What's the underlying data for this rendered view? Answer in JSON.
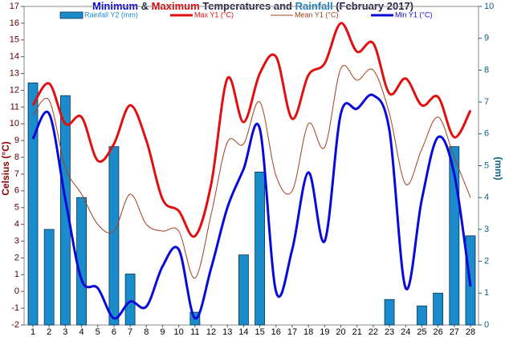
{
  "chart_data": {
    "type": "combo",
    "title_parts": [
      {
        "text": "Minimum",
        "color": "#0000cc"
      },
      {
        "text": " & ",
        "color": "#222244"
      },
      {
        "text": "Maximum",
        "color": "#e00000"
      },
      {
        "text": " Temperatures and ",
        "color": "#222244"
      },
      {
        "text": "Rainfall",
        "color": "#1a7fc0"
      },
      {
        "text": " (February 2017)",
        "color": "#222244"
      }
    ],
    "y_label": "Celsius (°C)",
    "y2_label": "(mm)",
    "categories": [
      "1",
      "2",
      "3",
      "4",
      "5",
      "6",
      "7",
      "8",
      "9",
      "10",
      "11",
      "12",
      "13",
      "14",
      "15",
      "16",
      "17",
      "18",
      "19",
      "20",
      "21",
      "22",
      "23",
      "24",
      "25",
      "26",
      "27",
      "28"
    ],
    "series": [
      {
        "name": "Rainfall Y2 (mm)",
        "kind": "bar",
        "axis": "y2",
        "color": "#1a8ccc",
        "values": [
          7.6,
          3.0,
          7.2,
          4.0,
          0,
          5.6,
          1.6,
          0,
          0,
          0,
          0.4,
          0,
          0,
          2.2,
          4.8,
          0,
          0,
          0,
          0,
          0,
          0,
          0,
          0.8,
          0,
          0.6,
          1.0,
          5.6,
          2.8
        ]
      },
      {
        "name": "Max Y1 (°C)",
        "kind": "line",
        "color": "#e01010",
        "width": 3,
        "values": [
          11.1,
          12.4,
          10.0,
          10.4,
          7.8,
          8.8,
          11.1,
          9.0,
          5.5,
          4.8,
          3.3,
          6.4,
          12.7,
          10.1,
          13.0,
          14.0,
          10.3,
          12.9,
          13.6,
          16.0,
          14.3,
          14.8,
          11.8,
          12.7,
          11.1,
          11.6,
          9.2,
          10.8
        ]
      },
      {
        "name": "Mean Y1 (°C)",
        "kind": "line",
        "color": "#a0401a",
        "width": 1,
        "values": [
          10.5,
          11.4,
          7.4,
          5.8,
          4.0,
          3.6,
          5.8,
          4.0,
          3.6,
          3.6,
          0.8,
          4.6,
          8.9,
          8.8,
          11.3,
          6.9,
          6.0,
          10.0,
          8.6,
          13.3,
          12.6,
          13.2,
          10.6,
          6.4,
          8.5,
          10.4,
          8.0,
          5.6
        ]
      },
      {
        "name": "Min Y1 (°C)",
        "kind": "line",
        "color": "#0a0ad8",
        "width": 3,
        "values": [
          9.1,
          10.6,
          5.5,
          0.7,
          0.2,
          -1.6,
          -0.6,
          -0.9,
          1.5,
          2.5,
          -1.6,
          1.4,
          5.0,
          7.3,
          9.7,
          0.0,
          2.5,
          7.1,
          3.0,
          10.6,
          10.9,
          11.7,
          9.6,
          0.2,
          5.5,
          9.2,
          7.0,
          0.3
        ]
      }
    ],
    "ylim": [
      -2,
      17
    ],
    "yticks": [
      -2,
      -1,
      0,
      1,
      2,
      3,
      4,
      5,
      6,
      7,
      8,
      9,
      10,
      11,
      12,
      13,
      14,
      15,
      16,
      17
    ],
    "y2lim": [
      0,
      10
    ],
    "y2ticks": [
      0,
      1,
      2,
      3,
      4,
      5,
      6,
      7,
      8,
      9,
      10
    ],
    "grid": false,
    "legend": "top"
  }
}
